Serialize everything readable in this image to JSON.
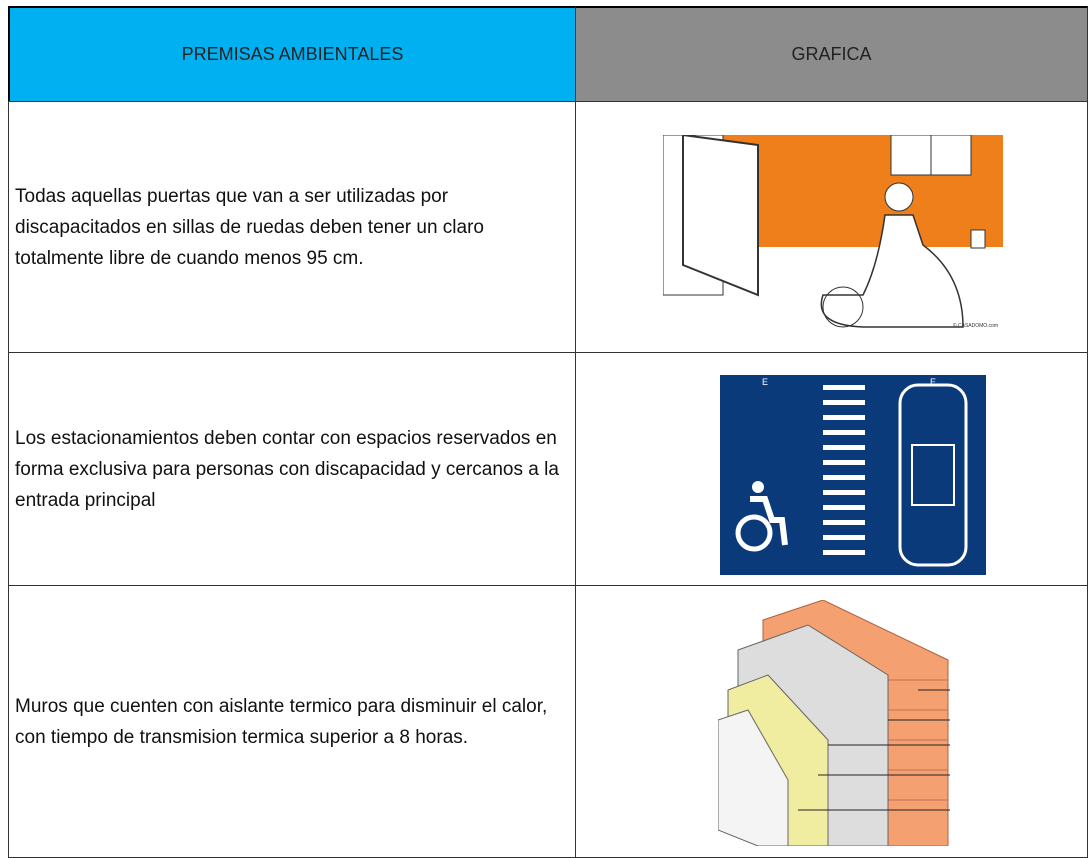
{
  "table": {
    "header": [
      "PREMISAS AMBIENTALES",
      "GRAFICA"
    ],
    "rows": [
      {
        "text": "Todas aquellas puertas que van a ser utilizadas por discapacitados en sillas de ruedas deben tener un claro totalmente libre de cuando menos 95 cm.",
        "graphic_labels": [
          "© CASADOMO.com"
        ]
      },
      {
        "text": "Los estacionamientos deben contar con espacios reservados en forma exclusiva para personas con discapacidad y cercanos a la entrada principal",
        "graphic_labels": [
          "E",
          "E"
        ]
      },
      {
        "text": "Muros que cuenten con aislante termico para disminuir el calor, con tiempo de transmision termica superior a 8 horas.",
        "graphic_labels": []
      }
    ]
  }
}
